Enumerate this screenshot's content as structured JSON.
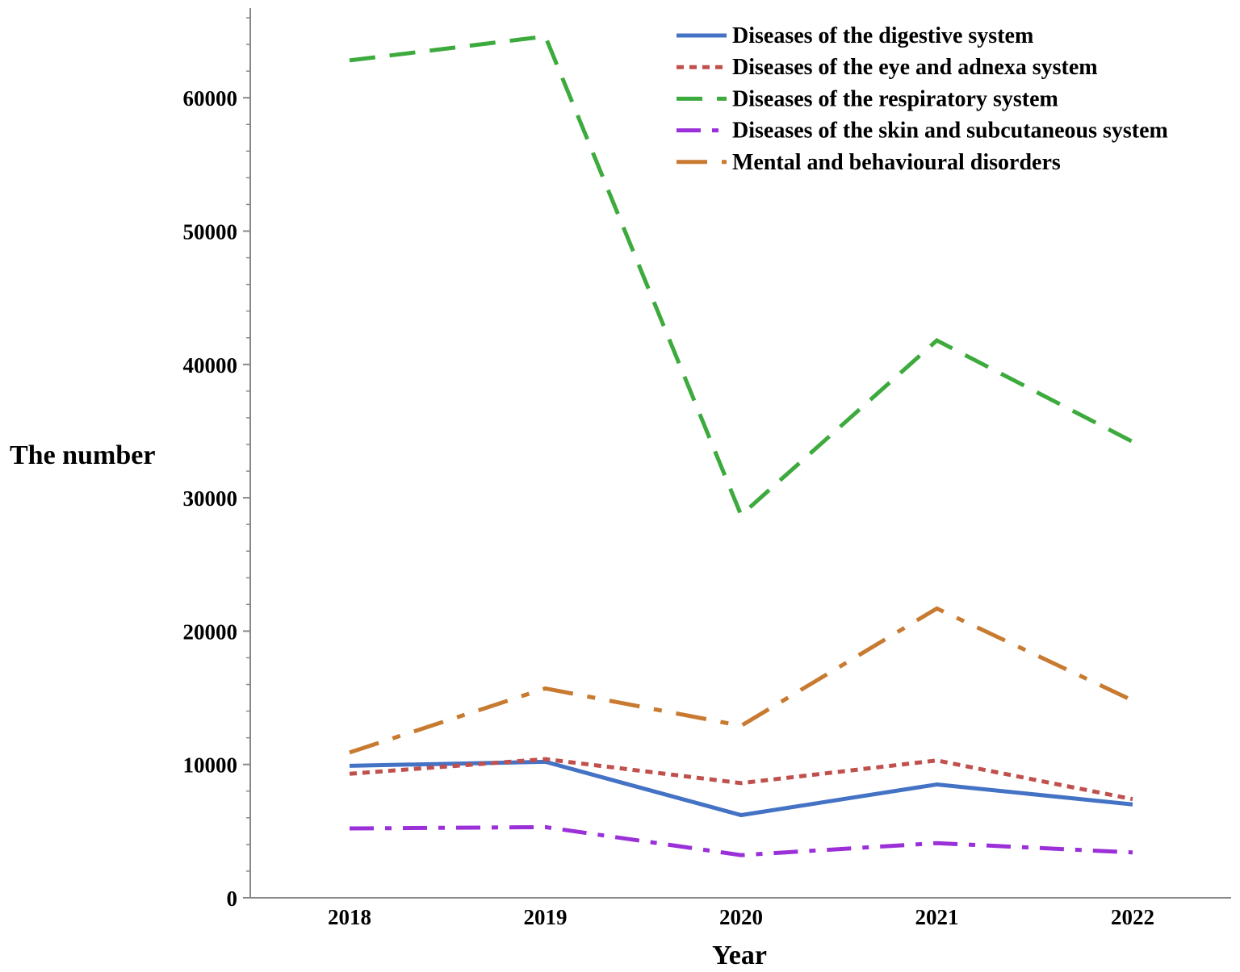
{
  "chart_data": {
    "type": "line",
    "title": "",
    "xlabel": "Year",
    "ylabel": "The number",
    "categories": [
      "2018",
      "2019",
      "2020",
      "2021",
      "2022"
    ],
    "ylim": [
      0,
      66000
    ],
    "yticks": [
      0,
      10000,
      20000,
      30000,
      40000,
      50000,
      60000
    ],
    "ytick_labels": [
      "0",
      "10000",
      "20000",
      "30000",
      "40000",
      "50000",
      "60000"
    ],
    "grid": false,
    "legend_position": "top-right",
    "series": [
      {
        "name": "Diseases of the digestive system",
        "values": [
          9900,
          10200,
          6200,
          8500,
          7000
        ],
        "color": "#4472C4",
        "dash": "solid"
      },
      {
        "name": "Diseases of the eye and adnexa system",
        "values": [
          9300,
          10400,
          8600,
          10300,
          7400
        ],
        "color": "#C0504D",
        "dash": "dot"
      },
      {
        "name": "Diseases of the respiratory system",
        "values": [
          62800,
          64600,
          28700,
          41800,
          34200
        ],
        "color": "#3CAA3C",
        "dash": "dash"
      },
      {
        "name": "Diseases of the skin and subcutaneous system",
        "values": [
          5200,
          5300,
          3200,
          4100,
          3400
        ],
        "color": "#9B30D9",
        "dash": "dashdot"
      },
      {
        "name": "Mental and behavioural disorders",
        "values": [
          10900,
          15700,
          12900,
          21700,
          14800
        ],
        "color": "#C87A30",
        "dash": "longdashdot"
      }
    ]
  }
}
